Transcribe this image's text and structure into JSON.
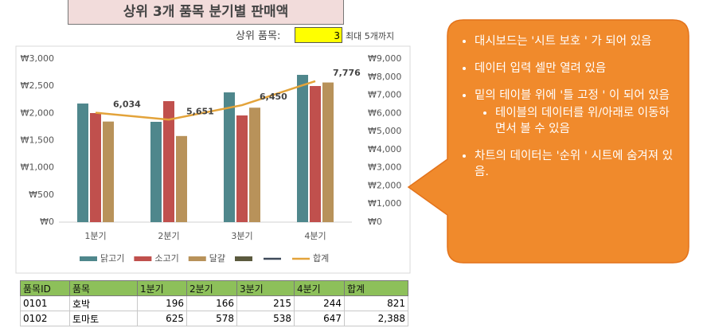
{
  "header": {
    "title": "상위 3개 품목 분기별 판매액",
    "input_label": "상위 품목:",
    "input_value": "3",
    "input_note": "최대 5개까지"
  },
  "chart_data": {
    "type": "bar",
    "categories": [
      "1분기",
      "2분기",
      "3분기",
      "4분기"
    ],
    "series": [
      {
        "name": "닭고기",
        "type": "bar",
        "color": "#4f878c",
        "values": [
          2180,
          1844,
          2385,
          2707
        ]
      },
      {
        "name": "소고기",
        "type": "bar",
        "color": "#c0504d",
        "values": [
          2005,
          2224,
          1961,
          2502
        ]
      },
      {
        "name": "달걀",
        "type": "bar",
        "color": "#b8925a",
        "values": [
          1849,
          1583,
          2104,
          2567
        ]
      },
      {
        "name": null,
        "type": "bar",
        "color": "#5b5a3e",
        "values": [
          null,
          null,
          null,
          null
        ]
      },
      {
        "name": null,
        "type": "line",
        "color": "#3f4a5a",
        "values": [
          null,
          null,
          null,
          null
        ]
      },
      {
        "name": "합계",
        "type": "line",
        "axis": "y2",
        "color": "#e3a33a",
        "values": [
          6034,
          5651,
          6450,
          7776
        ],
        "value_labels": [
          "6,034",
          "5,651",
          "6,450",
          "7,776"
        ]
      }
    ],
    "ylim": [
      0,
      3000
    ],
    "yticks": [
      {
        "value": 0,
        "label": "₩0"
      },
      {
        "value": 500,
        "label": "₩500"
      },
      {
        "value": 1000,
        "label": "₩1,000"
      },
      {
        "value": 1500,
        "label": "₩1,500"
      },
      {
        "value": 2000,
        "label": "₩2,000"
      },
      {
        "value": 2500,
        "label": "₩2,500"
      },
      {
        "value": 3000,
        "label": "₩3,000"
      }
    ],
    "y2lim": [
      0,
      9000
    ],
    "y2ticks": [
      {
        "value": 0,
        "label": "₩0"
      },
      {
        "value": 1000,
        "label": "₩1,000"
      },
      {
        "value": 2000,
        "label": "₩2,000"
      },
      {
        "value": 3000,
        "label": "₩3,000"
      },
      {
        "value": 4000,
        "label": "₩4,000"
      },
      {
        "value": 5000,
        "label": "₩5,000"
      },
      {
        "value": 6000,
        "label": "₩6,000"
      },
      {
        "value": 7000,
        "label": "₩7,000"
      },
      {
        "value": 8000,
        "label": "₩8,000"
      },
      {
        "value": 9000,
        "label": "₩9,000"
      }
    ],
    "grid": false,
    "legend": "bottom"
  },
  "table": {
    "columns": [
      "품목ID",
      "품목",
      "1분기",
      "2분기",
      "3분기",
      "4분기",
      "합계"
    ],
    "rows": [
      [
        "0101",
        "호박",
        "196",
        "166",
        "215",
        "244",
        "821"
      ],
      [
        "0102",
        "토마토",
        "625",
        "578",
        "538",
        "647",
        "2,388"
      ]
    ]
  },
  "callout": {
    "items": [
      "대시보드는 '시트 보호 ' 가 되어 있음",
      "데이터 입력 셀만 열려 있음",
      "밑의 테이블 위에 '틀 고정 ' 이 되어 있음",
      "테이블의 데이터를 위/아래로 이동하면서 볼 수 있음",
      "차트의 데이터는 '순위 ' 시트에 숨겨져 있음."
    ]
  }
}
